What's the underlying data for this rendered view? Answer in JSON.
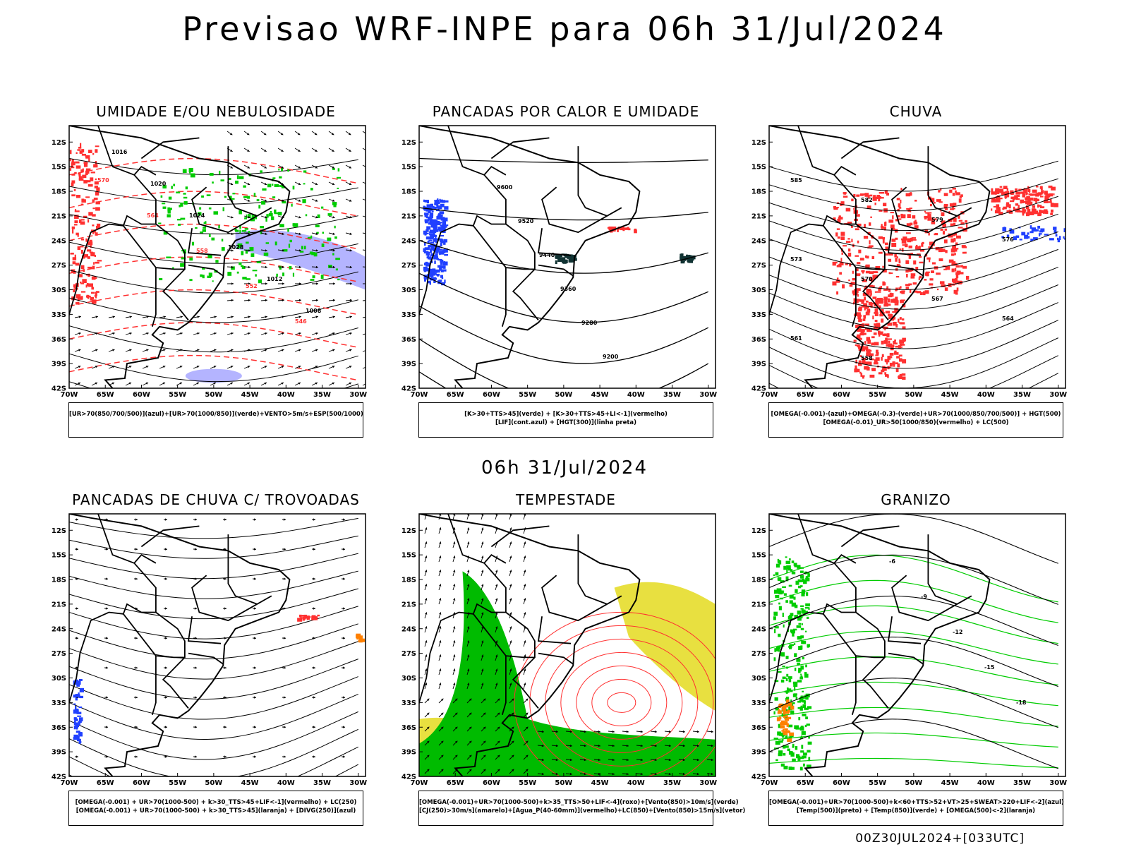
{
  "header": {
    "title": "Previsao WRF-INPE  para 06h 31/Jul/2024"
  },
  "middle_title": "06h 31/Jul/2024",
  "footer": "00Z30JUL2024+[033UTC]",
  "lat_ticks": [
    "12S",
    "15S",
    "18S",
    "21S",
    "24S",
    "27S",
    "30S",
    "33S",
    "36S",
    "39S",
    "42S"
  ],
  "lon_ticks": [
    "70W",
    "65W",
    "60W",
    "55W",
    "50W",
    "45W",
    "40W",
    "35W",
    "30W"
  ],
  "panels": [
    {
      "title": "UMIDADE E/OU NEBULOSIDADE",
      "legend": [
        "[UR>70(850/700/500)](azul)+[UR>70(1000/850)](verde)+VENTO>5m/s+ESP(500/1000)"
      ],
      "labels": [
        "1016",
        "1020",
        "1024",
        "1028",
        "1012",
        "1008",
        "570",
        "564",
        "558",
        "552",
        "546"
      ]
    },
    {
      "title": "PANCADAS POR CALOR E UMIDADE",
      "legend": [
        "[K>30+TTS>45](verde) + [K>30+TTS>45+LI<-1](vermelho)",
        "[LIF](cont.azul) + [HGT(300)](linha preta)"
      ],
      "labels": [
        "9600",
        "9520",
        "9440",
        "9360",
        "9280",
        "9200"
      ]
    },
    {
      "title": "CHUVA",
      "legend": [
        "[OMEGA(-0.001)-(azul)+OMEGA(-0.3)-(verde)+UR>70(1000/850/700/500)] + HGT(500)",
        "[OMEGA(-0.01)_UR>50(1000/850)(vermelho) + LC(500)"
      ],
      "labels": [
        "585",
        "582",
        "579",
        "576",
        "573",
        "570",
        "567",
        "564",
        "561",
        "558"
      ]
    },
    {
      "title": "PANCADAS DE CHUVA C/ TROVOADAS",
      "legend": [
        "[OMEGA(-0.001) + UR>70(1000-500) + k>30_TTS>45+LIF<-1](vermelho) + LC(250)",
        "[OMEGA(-0.001) + UR>70(1000-500) + k>30_TTS>45](laranja) + [DIVG(250)](azul)"
      ],
      "labels": []
    },
    {
      "title": "TEMPESTADE",
      "legend": [
        "[OMEGA(-0.001)+UR>70(1000-500)+k>35_TTS>50+LIF<-4](roxo)+[Vento(850)>10m/s](verde)",
        "[CJ(250)>30m/s](amarelo)+[Agua_P(40-60mm)](vermelho)+LC(850)+[Vento(850)>15m/s](vetor)"
      ],
      "labels": []
    },
    {
      "title": "GRANIZO",
      "legend": [
        "[OMEGA(-0.001)+UR>70(1000-500)+k<60+TTS>52+VT>25+SWEAT>220+LIF<-2](azul)",
        "[Temp(500)](preto) + [Temp(850)](verde) + [OMEGA(500)<-2](laranja)"
      ],
      "labels": [
        "-6",
        "-9",
        "-12",
        "-15",
        "-18"
      ]
    }
  ],
  "colors": {
    "humidity_high": "#b4b4ff",
    "humidity_low": "#00cc00",
    "rain": "#ff3030",
    "jet": "#e8e040",
    "wind": "#00bb00",
    "lif": "#2040ff",
    "orange": "#ff8000"
  }
}
